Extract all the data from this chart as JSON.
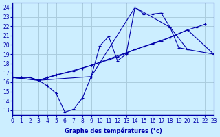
{
  "title": "Graphe des températures (°c)",
  "bg_color": "#cceeff",
  "grid_color": "#aaccdd",
  "line_color": "#0000aa",
  "xlim": [
    0,
    23
  ],
  "ylim": [
    12.5,
    24.5
  ],
  "xticks": [
    0,
    1,
    2,
    3,
    4,
    5,
    6,
    7,
    8,
    9,
    10,
    11,
    12,
    13,
    14,
    15,
    16,
    17,
    18,
    19,
    20,
    21,
    22,
    23
  ],
  "yticks": [
    13,
    14,
    15,
    16,
    17,
    18,
    19,
    20,
    21,
    22,
    23,
    24
  ],
  "series": [
    {
      "x": [
        0,
        1,
        2,
        3,
        4,
        5,
        6,
        7,
        8,
        9,
        10,
        11,
        12,
        13,
        14,
        15,
        16,
        17,
        18,
        19,
        20,
        21,
        22,
        23
      ],
      "y": [
        16.5,
        16.5,
        16.5,
        16.2,
        15.6,
        14.8,
        12.8,
        13.1,
        14.3,
        16.6,
        19.9,
        20.9,
        18.3,
        19.0,
        24.0,
        23.3,
        23.3,
        23.4,
        21.9,
        19.7,
        19.5,
        null,
        null,
        null
      ]
    },
    {
      "x": [
        0,
        1,
        2,
        3,
        4,
        5,
        6,
        7,
        8,
        9,
        10,
        11,
        12,
        13,
        14,
        15,
        16,
        17,
        18,
        19,
        20,
        21,
        22,
        23
      ],
      "y": [
        16.5,
        16.5,
        16.5,
        16.2,
        16.5,
        16.8,
        17.0,
        17.2,
        17.5,
        17.8,
        18.1,
        18.4,
        18.7,
        19.1,
        19.5,
        19.8,
        20.1,
        20.4,
        20.8,
        21.2,
        21.6,
        21.9,
        22.2,
        null
      ]
    },
    {
      "x": [
        0,
        3,
        9,
        14,
        18,
        20,
        23
      ],
      "y": [
        16.5,
        16.2,
        16.6,
        24.0,
        21.9,
        19.5,
        19.0
      ]
    },
    {
      "x": [
        0,
        3,
        9,
        14,
        18,
        20,
        23
      ],
      "y": [
        16.5,
        16.2,
        17.8,
        19.5,
        20.8,
        21.6,
        19.0
      ]
    }
  ],
  "marker": "+"
}
